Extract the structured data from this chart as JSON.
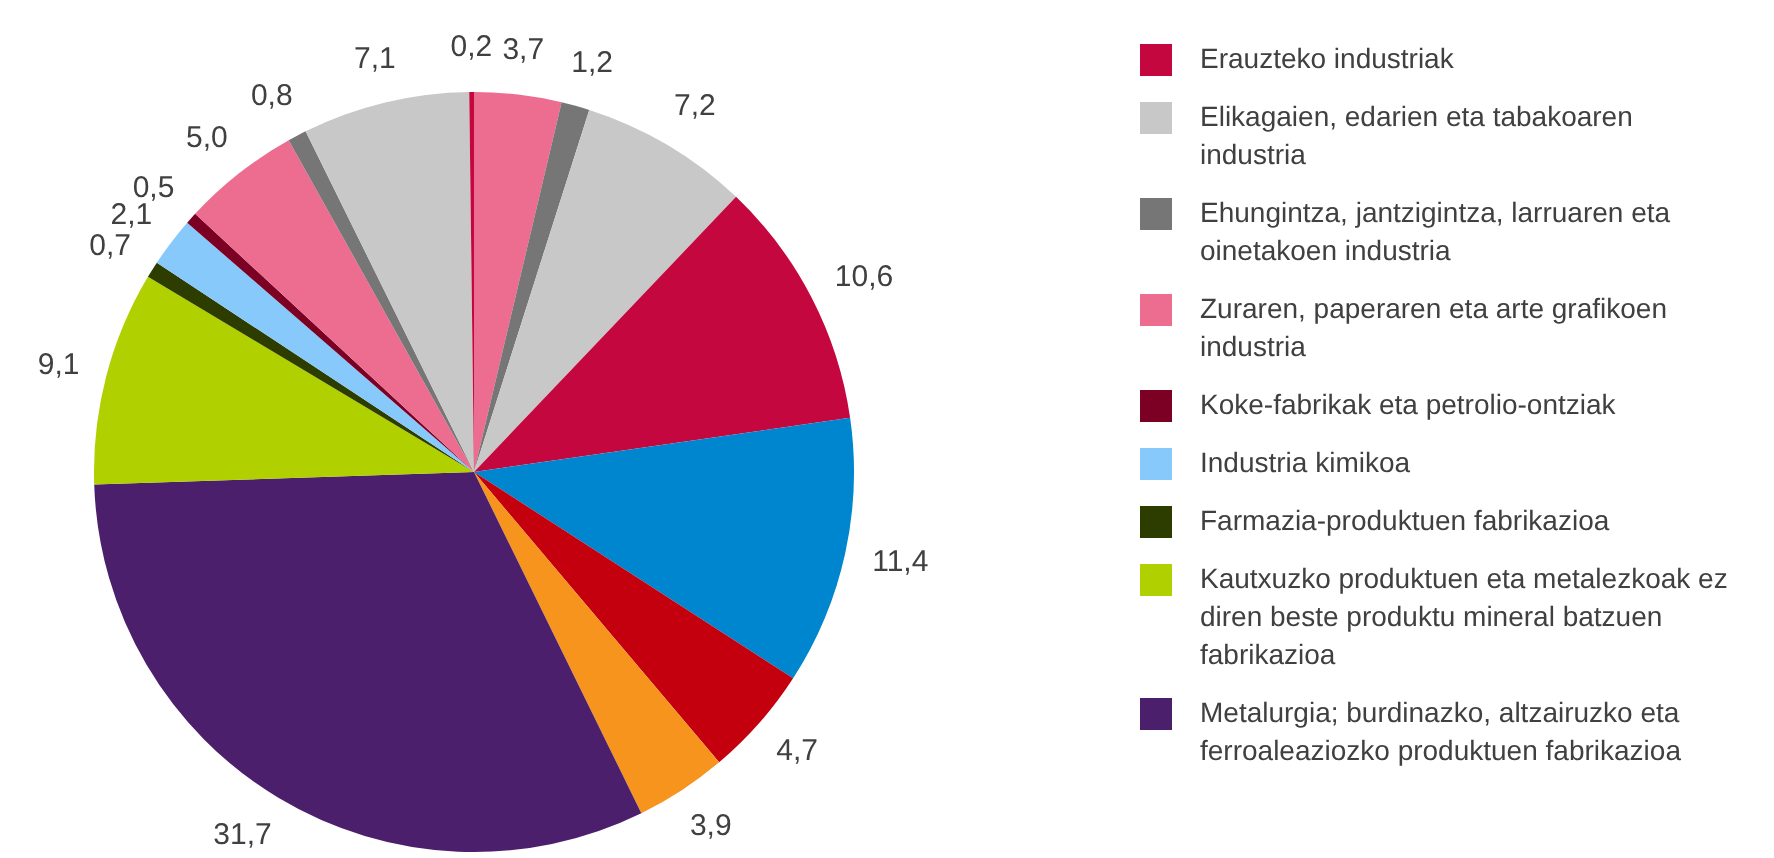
{
  "chart_data": {
    "type": "pie",
    "categories": [
      "Erauzteko industriak",
      "Elikagaien, edarien eta tabakoaren industria",
      "Ehungintza, jantzigintza, larruaren eta oinetakoen industria",
      "Zuraren, paperaren eta arte grafikoen industria",
      "Koke-fabrikak eta petrolio-ontziak",
      "Industria kimikoa",
      "Farmazia-produktuen fabrikazioa",
      "Kautxuzko produktuen eta metalezkoak ez diren beste produktu mineral batzuen fabrikazioa",
      "Metalurgia; burdinazko, altzairuzko eta ferroaleaziozko produktuen fabrikazioa",
      null,
      null,
      null,
      null,
      null,
      null,
      null
    ],
    "values": [
      0.2,
      7.1,
      0.8,
      5.0,
      0.5,
      2.1,
      0.7,
      9.1,
      31.7,
      3.9,
      4.7,
      11.4,
      10.6,
      7.2,
      1.2,
      3.7
    ],
    "value_labels": [
      "0,2",
      "7,1",
      "0,8",
      "5,0",
      "0,5",
      "2,1",
      "0,7",
      "9,1",
      "31,7",
      "3,9",
      "4,7",
      "11,4",
      "10,6",
      "7,2",
      "1,2",
      "3,7"
    ],
    "colors": [
      "#c5073f",
      "#c8c8c8",
      "#767676",
      "#ec6d8f",
      "#7c0024",
      "#87c9fb",
      "#2d3d00",
      "#b0d000",
      "#4b1f6c",
      "#f7941d",
      "#c4000f",
      "#0085cf",
      "#c5073f",
      "#c8c8c8",
      "#767676",
      "#ec6d8f"
    ],
    "legend": "right"
  }
}
